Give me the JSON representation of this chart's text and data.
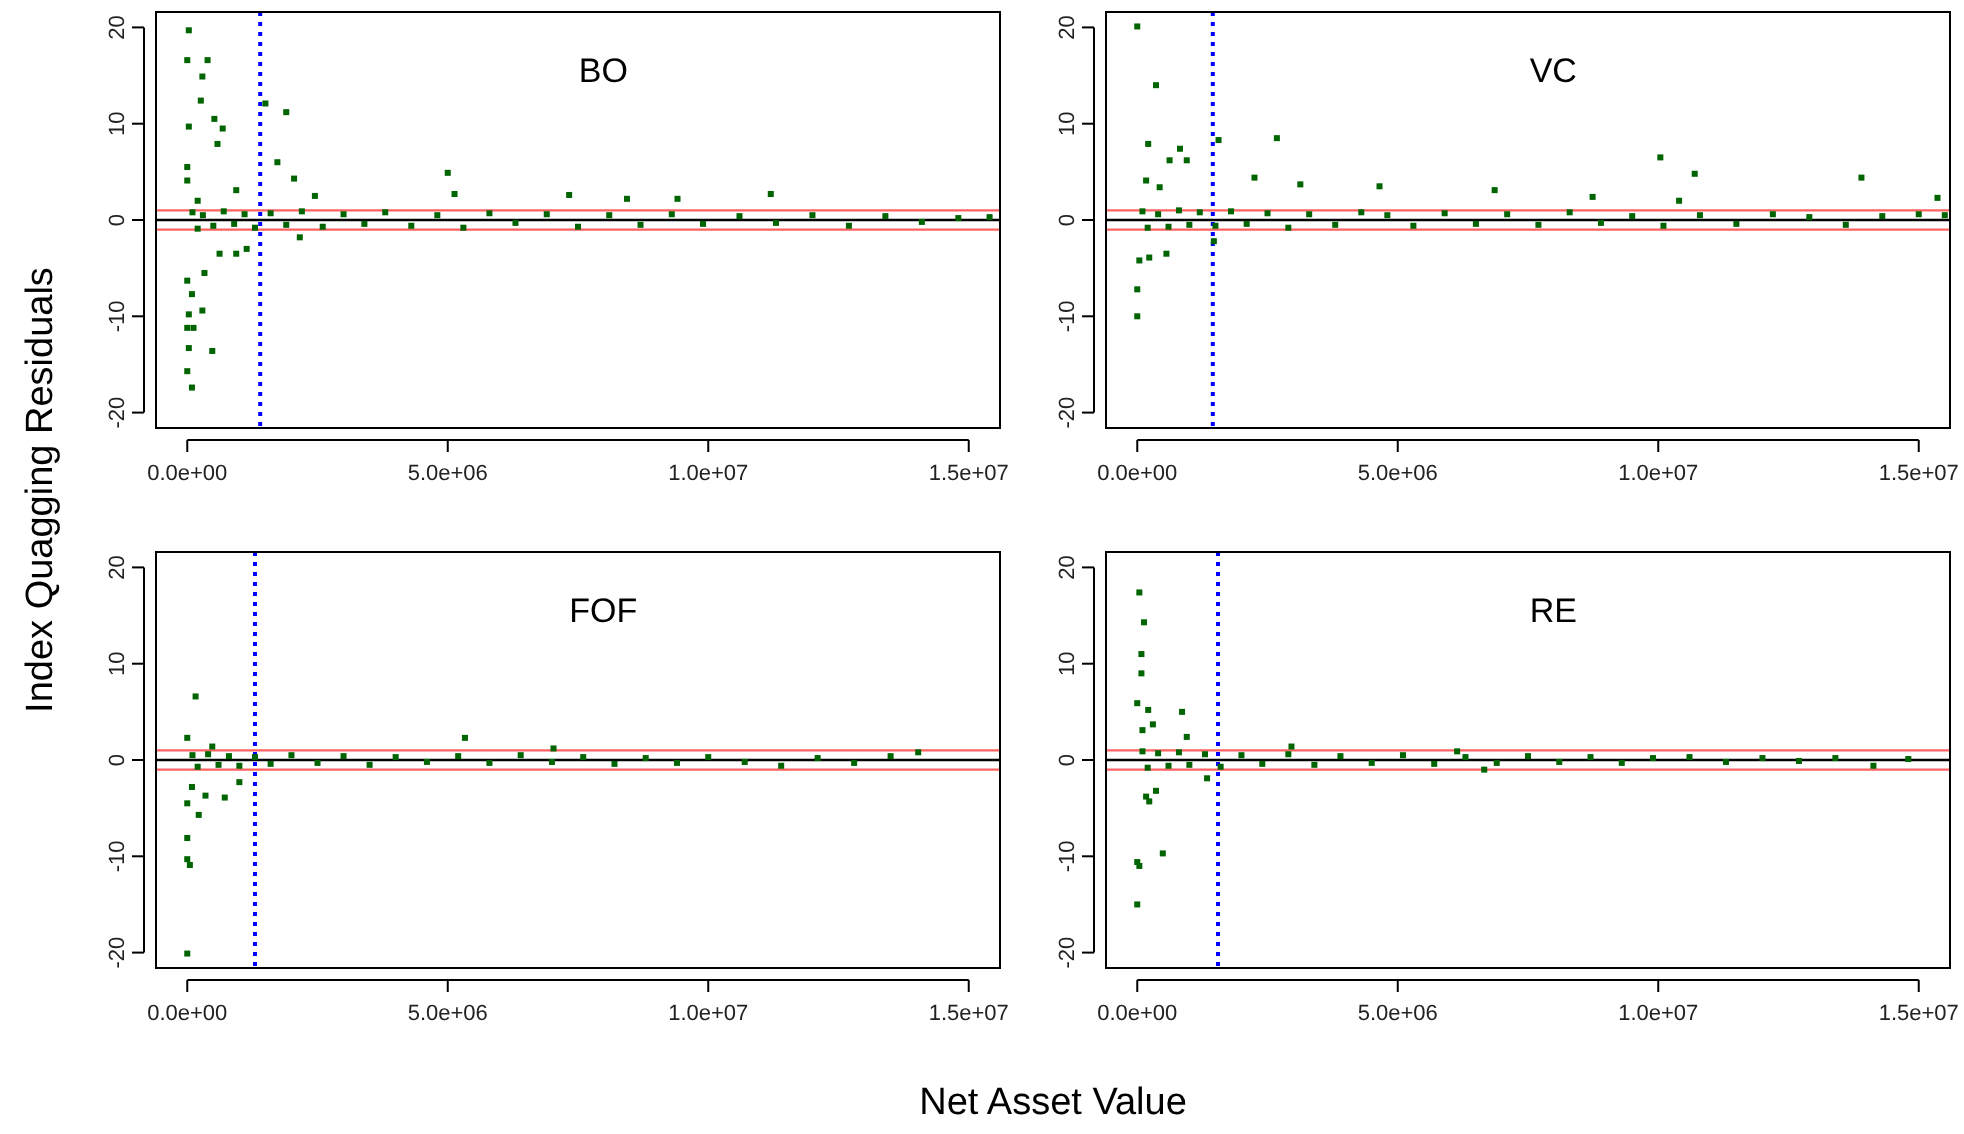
{
  "chart_data": [
    {
      "type": "scatter",
      "title": "BO",
      "ylabel": "Index Quagging Residuals",
      "xlabel": "Net Asset Value",
      "color": "#006400",
      "marker": "square",
      "grid": false,
      "xlim": [
        -600000,
        15600000
      ],
      "ylim": [
        -21.6,
        21.6
      ],
      "xticks": [
        {
          "value": 0,
          "label": "0.0e+00"
        },
        {
          "value": 5000000,
          "label": "5.0e+06"
        },
        {
          "value": 10000000,
          "label": "1.0e+07"
        },
        {
          "value": 15000000,
          "label": "1.5e+07"
        }
      ],
      "yticks": [
        -20,
        -10,
        0,
        10,
        20
      ],
      "ref_lines": [
        {
          "axis": "y",
          "value": 0,
          "color": "#000000"
        },
        {
          "axis": "y",
          "value": 1,
          "color": "#ff6060"
        },
        {
          "axis": "y",
          "value": -1,
          "color": "#ff6060"
        },
        {
          "axis": "x",
          "value": 1400000,
          "color": "#0000ff",
          "line_style": "dotted"
        }
      ],
      "x": [
        30000.0,
        0,
        290000.0,
        390000.0,
        260000.0,
        1500000.0,
        1900000.0,
        520000.0,
        30000.0,
        680000.0,
        580000.0,
        1730000.0,
        2050000.0,
        5000000.0,
        5130000.0,
        7330000.0,
        11200000.0,
        9410000.0,
        8440000.0,
        2450000.0,
        0,
        0,
        200000.0,
        940000.0,
        0,
        30000.0,
        0,
        120000.0,
        30000.0,
        0,
        90000.0,
        480000.0,
        290000.0,
        330000.0,
        620000.0,
        940000.0,
        1140000.0,
        2160000.0,
        90000.0,
        100000.0,
        200000.0,
        300000.0,
        500000.0,
        700000.0,
        900000.0,
        1100000.0,
        1300000.0,
        1600000.0,
        1900000.0,
        2200000.0,
        2600000.0,
        3000000.0,
        3400000.0,
        3800000.0,
        4300000.0,
        4800000.0,
        5300000.0,
        5800000.0,
        6300000.0,
        6900000.0,
        7500000.0,
        8100000.0,
        8700000.0,
        9300000.0,
        9900000.0,
        10600000.0,
        11300000.0,
        12000000.0,
        12700000.0,
        13400000.0,
        14100000.0,
        14800000.0,
        15400000.0
      ],
      "values": [
        19.7,
        16.6,
        14.9,
        16.6,
        12.4,
        12.1,
        11.2,
        10.5,
        9.7,
        9.5,
        7.9,
        6,
        4.3,
        4.9,
        2.7,
        2.6,
        2.7,
        2.2,
        2.2,
        2.5,
        5.5,
        4.1,
        2,
        3.1,
        -6.3,
        -9.8,
        -11.2,
        -11.2,
        -13.3,
        -15.7,
        -17.4,
        -13.6,
        -9.4,
        -5.5,
        -3.5,
        -3.5,
        -3,
        -1.8,
        -7.7,
        0.8,
        -0.9,
        0.5,
        -0.6,
        0.9,
        -0.4,
        0.6,
        -0.8,
        0.7,
        -0.5,
        0.9,
        -0.7,
        0.6,
        -0.4,
        0.8,
        -0.6,
        0.5,
        -0.8,
        0.7,
        -0.3,
        0.6,
        -0.7,
        0.5,
        -0.5,
        0.6,
        -0.4,
        0.4,
        -0.3,
        0.5,
        -0.6,
        0.4,
        -0.2,
        0.2,
        0.3
      ]
    },
    {
      "type": "scatter",
      "title": "VC",
      "color": "#006400",
      "marker": "square",
      "grid": false,
      "xlim": [
        -600000,
        15600000
      ],
      "ylim": [
        -21.6,
        21.6
      ],
      "xticks": [
        {
          "value": 0,
          "label": "0.0e+00"
        },
        {
          "value": 5000000,
          "label": "5.0e+06"
        },
        {
          "value": 10000000,
          "label": "1.0e+07"
        },
        {
          "value": 15000000,
          "label": "1.5e+07"
        }
      ],
      "yticks": [
        -20,
        -10,
        0,
        10,
        20
      ],
      "ref_lines": [
        {
          "axis": "y",
          "value": 0,
          "color": "#000000"
        },
        {
          "axis": "y",
          "value": 1,
          "color": "#ff6060"
        },
        {
          "axis": "y",
          "value": -1,
          "color": "#ff6060"
        },
        {
          "axis": "x",
          "value": 1450000,
          "color": "#0000ff",
          "line_style": "dotted"
        }
      ],
      "x": [
        0,
        360000.0,
        0,
        0,
        210000.0,
        820000.0,
        950000.0,
        620000.0,
        1560000.0,
        2680000.0,
        2250000.0,
        10040000.0,
        10700000.0,
        13900000.0,
        3130000.0,
        4650000.0,
        8740000.0,
        15360000.0,
        170000.0,
        430000.0,
        40000.0,
        230000.0,
        560000.0,
        1470000.0,
        6860000.0,
        10400000.0,
        100000.0,
        200000.0,
        400000.0,
        600000.0,
        800000.0,
        1000000.0,
        1200000.0,
        1500000.0,
        1800000.0,
        2100000.0,
        2500000.0,
        2900000.0,
        3300000.0,
        3800000.0,
        4300000.0,
        4800000.0,
        5300000.0,
        5900000.0,
        6500000.0,
        7100000.0,
        7700000.0,
        8300000.0,
        8900000.0,
        9500000.0,
        10100000.0,
        10800000.0,
        11500000.0,
        12200000.0,
        12900000.0,
        13600000.0,
        14300000.0,
        15000000.0,
        15500000.0
      ],
      "values": [
        20.1,
        14,
        -10,
        -7.2,
        7.9,
        7.4,
        6.2,
        6.2,
        8.3,
        8.5,
        4.4,
        6.5,
        4.8,
        4.4,
        3.7,
        3.5,
        2.4,
        2.3,
        4.1,
        3.4,
        -4.2,
        -3.9,
        -3.5,
        -2.2,
        3.1,
        2,
        0.9,
        -0.8,
        0.6,
        -0.7,
        1,
        -0.5,
        0.8,
        -0.6,
        0.9,
        -0.4,
        0.7,
        -0.8,
        0.6,
        -0.5,
        0.8,
        0.5,
        -0.6,
        0.7,
        -0.4,
        0.6,
        -0.5,
        0.8,
        -0.3,
        0.4,
        -0.6,
        0.5,
        -0.4,
        0.6,
        0.3,
        -0.5,
        0.4,
        0.6,
        0.5
      ]
    },
    {
      "type": "scatter",
      "title": "FOF",
      "color": "#006400",
      "marker": "square",
      "grid": false,
      "xlim": [
        -600000,
        15600000
      ],
      "ylim": [
        -21.6,
        21.6
      ],
      "xticks": [
        {
          "value": 0,
          "label": "0.0e+00"
        },
        {
          "value": 5000000,
          "label": "5.0e+06"
        },
        {
          "value": 10000000,
          "label": "1.0e+07"
        },
        {
          "value": 15000000,
          "label": "1.5e+07"
        }
      ],
      "yticks": [
        -20,
        -10,
        0,
        10,
        20
      ],
      "ref_lines": [
        {
          "axis": "y",
          "value": 0,
          "color": "#000000"
        },
        {
          "axis": "y",
          "value": 1,
          "color": "#ff6060"
        },
        {
          "axis": "y",
          "value": -1,
          "color": "#ff6060"
        },
        {
          "axis": "x",
          "value": 1300000,
          "color": "#0000ff",
          "line_style": "dotted"
        }
      ],
      "x": [
        160000.0,
        0,
        5330000.0,
        0,
        0,
        50000.0,
        0,
        220000.0,
        0,
        350000.0,
        720000.0,
        1000000.0,
        480000.0,
        7030000.0,
        14030000.0,
        90000.0,
        100000.0,
        200000.0,
        400000.0,
        600000.0,
        800000.0,
        1000000.0,
        1300000.0,
        1600000.0,
        2000000.0,
        2500000.0,
        3000000.0,
        3500000.0,
        4000000.0,
        4600000.0,
        5200000.0,
        5800000.0,
        6400000.0,
        7000000.0,
        7600000.0,
        8200000.0,
        8800000.0,
        9400000.0,
        10000000.0,
        10700000.0,
        11400000.0,
        12100000.0,
        12800000.0,
        13500000.0
      ],
      "values": [
        6.6,
        2.3,
        2.3,
        -8.1,
        -10.3,
        -10.9,
        -20.1,
        -5.7,
        -4.5,
        -3.7,
        -3.9,
        -2.3,
        1.4,
        1.2,
        0.8,
        -2.8,
        0.5,
        -0.7,
        0.6,
        -0.5,
        0.4,
        -0.6,
        0.3,
        -0.4,
        0.5,
        -0.3,
        0.4,
        -0.5,
        0.3,
        -0.2,
        0.4,
        -0.3,
        0.5,
        -0.2,
        0.3,
        -0.4,
        0.2,
        -0.3,
        0.3,
        -0.2,
        -0.6,
        0.2,
        -0.3,
        0.4
      ]
    },
    {
      "type": "scatter",
      "title": "RE",
      "color": "#006400",
      "marker": "square",
      "grid": false,
      "xlim": [
        -600000,
        15600000
      ],
      "ylim": [
        -21.6,
        21.6
      ],
      "xticks": [
        {
          "value": 0,
          "label": "0.0e+00"
        },
        {
          "value": 5000000,
          "label": "5.0e+06"
        },
        {
          "value": 10000000,
          "label": "1.0e+07"
        },
        {
          "value": 15000000,
          "label": "1.5e+07"
        }
      ],
      "yticks": [
        -20,
        -10,
        0,
        10,
        20
      ],
      "ref_lines": [
        {
          "axis": "y",
          "value": 0,
          "color": "#000000"
        },
        {
          "axis": "y",
          "value": 1,
          "color": "#ff6060"
        },
        {
          "axis": "y",
          "value": -1,
          "color": "#ff6060"
        },
        {
          "axis": "x",
          "value": 1550000,
          "color": "#0000ff",
          "line_style": "dotted"
        }
      ],
      "x": [
        40000.0,
        130000.0,
        80000.0,
        80000.0,
        0,
        210000.0,
        860000.0,
        300000.0,
        100000.0,
        950000.0,
        0,
        40000.0,
        0,
        490000.0,
        170000.0,
        230000.0,
        360000.0,
        1340000.0,
        2960000.0,
        6140000.0,
        14130000.0,
        6660000.0,
        100000.0,
        200000.0,
        400000.0,
        600000.0,
        800000.0,
        1000000.0,
        1300000.0,
        1600000.0,
        2000000.0,
        2400000.0,
        2900000.0,
        3400000.0,
        3900000.0,
        4500000.0,
        5100000.0,
        5700000.0,
        6300000.0,
        6900000.0,
        7500000.0,
        8100000.0,
        8700000.0,
        9300000.0,
        9900000.0,
        10600000.0,
        11300000.0,
        12000000.0,
        12700000.0,
        13400000.0,
        14800000.0
      ],
      "values": [
        17.4,
        14.3,
        11,
        9,
        5.9,
        5.2,
        5,
        3.7,
        3.1,
        2.4,
        -10.6,
        -11,
        -15,
        -9.7,
        -3.8,
        -4.3,
        -3.2,
        -1.9,
        1.4,
        0.9,
        -0.6,
        -1,
        0.9,
        -0.8,
        0.7,
        -0.6,
        0.8,
        -0.5,
        0.6,
        -0.7,
        0.5,
        -0.4,
        0.6,
        -0.5,
        0.4,
        -0.3,
        0.5,
        -0.4,
        0.3,
        -0.3,
        0.4,
        -0.2,
        0.3,
        -0.3,
        0.2,
        0.3,
        -0.2,
        0.2,
        -0.1,
        0.2,
        0.1
      ]
    }
  ]
}
